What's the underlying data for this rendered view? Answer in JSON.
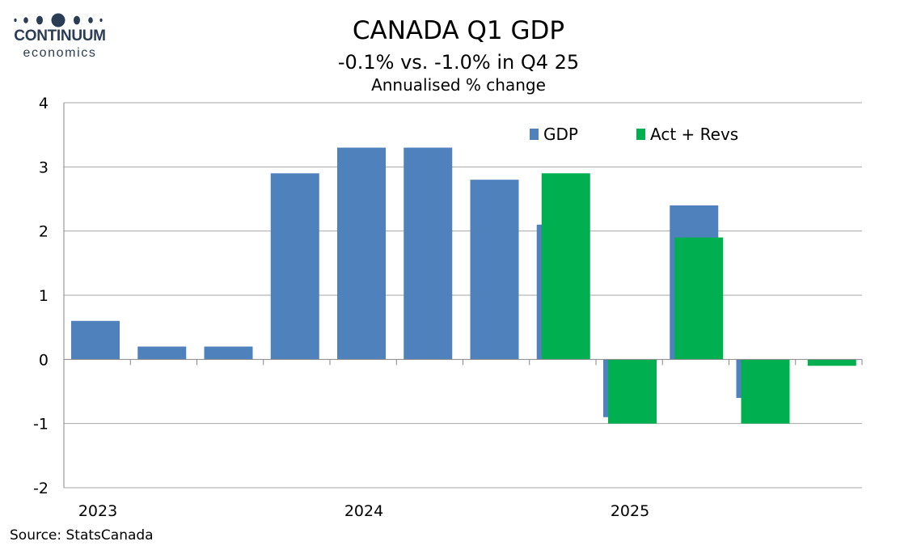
{
  "logo": {
    "line1": "CONTINUUM",
    "line2": "economics",
    "color": "#2b3d54"
  },
  "header": {
    "title": "CANADA Q1 GDP",
    "subtitle": "-0.1% vs.  -1.0% in Q4 25",
    "units": "Annualised % change"
  },
  "footer": {
    "source": "Source: StatsCanada"
  },
  "colors": {
    "gdp": "#4f81bd",
    "act_revs": "#00b050",
    "grid": "#a6a6a6",
    "axis": "#868686"
  },
  "chart_data": {
    "type": "bar",
    "categories": [
      "2023 Q1",
      "2023 Q2",
      "2023 Q3",
      "2023 Q4",
      "2024 Q1",
      "2024 Q2",
      "2024 Q3",
      "2024 Q4",
      "2025 Q1",
      "2025 Q2",
      "2025 Q3",
      "2025 Q4"
    ],
    "x_tick_labels": [
      {
        "label": "2023",
        "category_index": 0
      },
      {
        "label": "2024",
        "category_index": 4
      },
      {
        "label": "2025",
        "category_index": 8
      }
    ],
    "series": [
      {
        "name": "GDP",
        "values": [
          0.6,
          0.2,
          0.2,
          2.9,
          3.3,
          3.3,
          2.8,
          2.1,
          -0.9,
          2.4,
          -0.6,
          null
        ]
      },
      {
        "name": "Act + Revs",
        "values": [
          null,
          null,
          null,
          null,
          null,
          null,
          null,
          2.9,
          -1.0,
          1.9,
          -1.0,
          -0.1
        ]
      }
    ],
    "ylim": [
      -2,
      4
    ],
    "yticks": [
      -2,
      -1,
      0,
      1,
      2,
      3,
      4
    ],
    "grid": true,
    "legend_position": "top-right",
    "xlabel": "",
    "ylabel": ""
  }
}
